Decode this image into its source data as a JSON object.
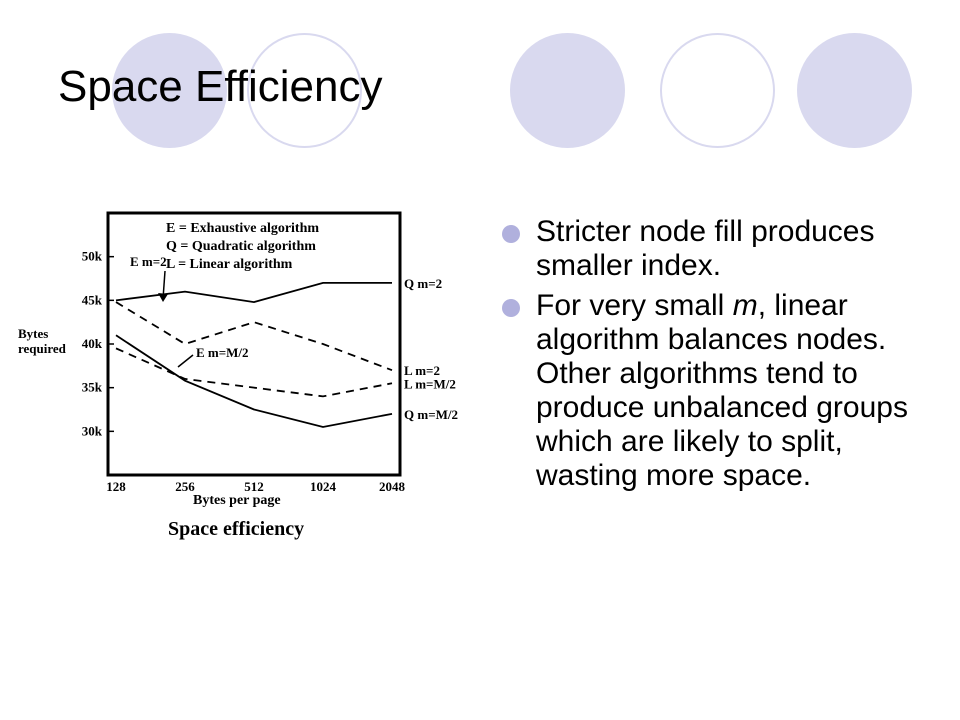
{
  "slide": {
    "title": "Space Efficiency",
    "bullets": [
      {
        "parts": [
          "Stricter node fill produces smaller index."
        ]
      },
      {
        "parts": [
          "For very small ",
          "m",
          ", linear algorithm balances nodes. Other algorithms tend to produce unbalanced groups which are likely to split, wasting more space."
        ]
      }
    ]
  },
  "colors": {
    "decor_circle": "#d9d9ef",
    "bullet_dot": "#b0b0dd"
  },
  "chart_data": {
    "type": "line",
    "title": "Space efficiency",
    "xlabel": "Bytes per page",
    "ylabel": "Bytes required",
    "x_ticks": [
      "128",
      "256",
      "512",
      "1024",
      "2048"
    ],
    "y_ticks": [
      "30k",
      "35k",
      "40k",
      "45k",
      "50k"
    ],
    "ylim": [
      25,
      55
    ],
    "legend": [
      "E = Exhaustive algorithm",
      "Q = Quadratic algorithm",
      "L = Linear algorithm"
    ],
    "legend_placement": "top",
    "grid": false,
    "series": [
      {
        "name": "Q m=2",
        "style": "solid",
        "values": [
          45,
          46,
          44.8,
          47,
          47
        ]
      },
      {
        "name": "L m=2",
        "style": "dashed",
        "values": [
          44.8,
          40,
          42.5,
          40,
          37
        ]
      },
      {
        "name": "L m=M/2",
        "style": "dashed",
        "values": [
          39.5,
          36,
          35,
          34,
          35.5
        ]
      },
      {
        "name": "Q m=M/2",
        "style": "solid",
        "values": [
          41,
          35.8,
          32.5,
          30.5,
          32
        ]
      }
    ],
    "annotations": [
      {
        "text": "E m=2",
        "points_to": "Q m=2 / L m=2 junction at 256"
      },
      {
        "text": "E m=M/2",
        "points_to": "L m=M/2 / Q m=M/2 junction near 256"
      }
    ]
  }
}
